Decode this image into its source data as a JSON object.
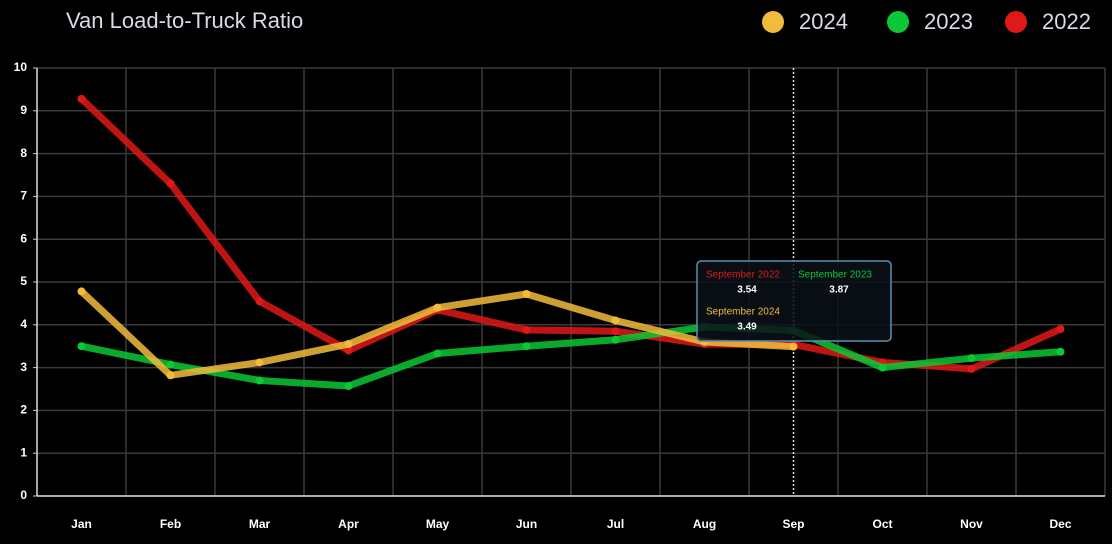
{
  "chart_data": {
    "type": "line",
    "title": "Van Load-to-Truck Ratio",
    "categories": [
      "Jan",
      "Feb",
      "Mar",
      "Apr",
      "May",
      "Jun",
      "Jul",
      "Aug",
      "Sep",
      "Oct",
      "Nov",
      "Dec"
    ],
    "series": [
      {
        "name": "2024",
        "color": "#f2bb3c",
        "values": [
          4.78,
          2.82,
          3.12,
          3.55,
          4.4,
          4.72,
          4.1,
          3.6,
          3.49,
          null,
          null,
          null
        ]
      },
      {
        "name": "2023",
        "color": "#0bc834",
        "values": [
          3.5,
          3.07,
          2.7,
          2.57,
          3.33,
          3.5,
          3.65,
          3.95,
          3.87,
          3.0,
          3.22,
          3.37
        ]
      },
      {
        "name": "2022",
        "color": "#e01818",
        "values": [
          9.28,
          7.3,
          4.55,
          3.4,
          4.35,
          3.88,
          3.85,
          3.55,
          3.54,
          3.12,
          2.97,
          3.9
        ]
      }
    ],
    "ylim": [
      0,
      10
    ],
    "yticks": [
      0,
      1,
      2,
      3,
      4,
      5,
      6,
      7,
      8,
      9,
      10
    ],
    "grid": true,
    "legend": "top-right",
    "tooltip": {
      "category_index": 8,
      "items": [
        {
          "label": "September 2022",
          "series_index": 2
        },
        {
          "label": "September 2023",
          "series_index": 1
        },
        {
          "label": "September 2024",
          "series_index": 0
        }
      ]
    }
  }
}
